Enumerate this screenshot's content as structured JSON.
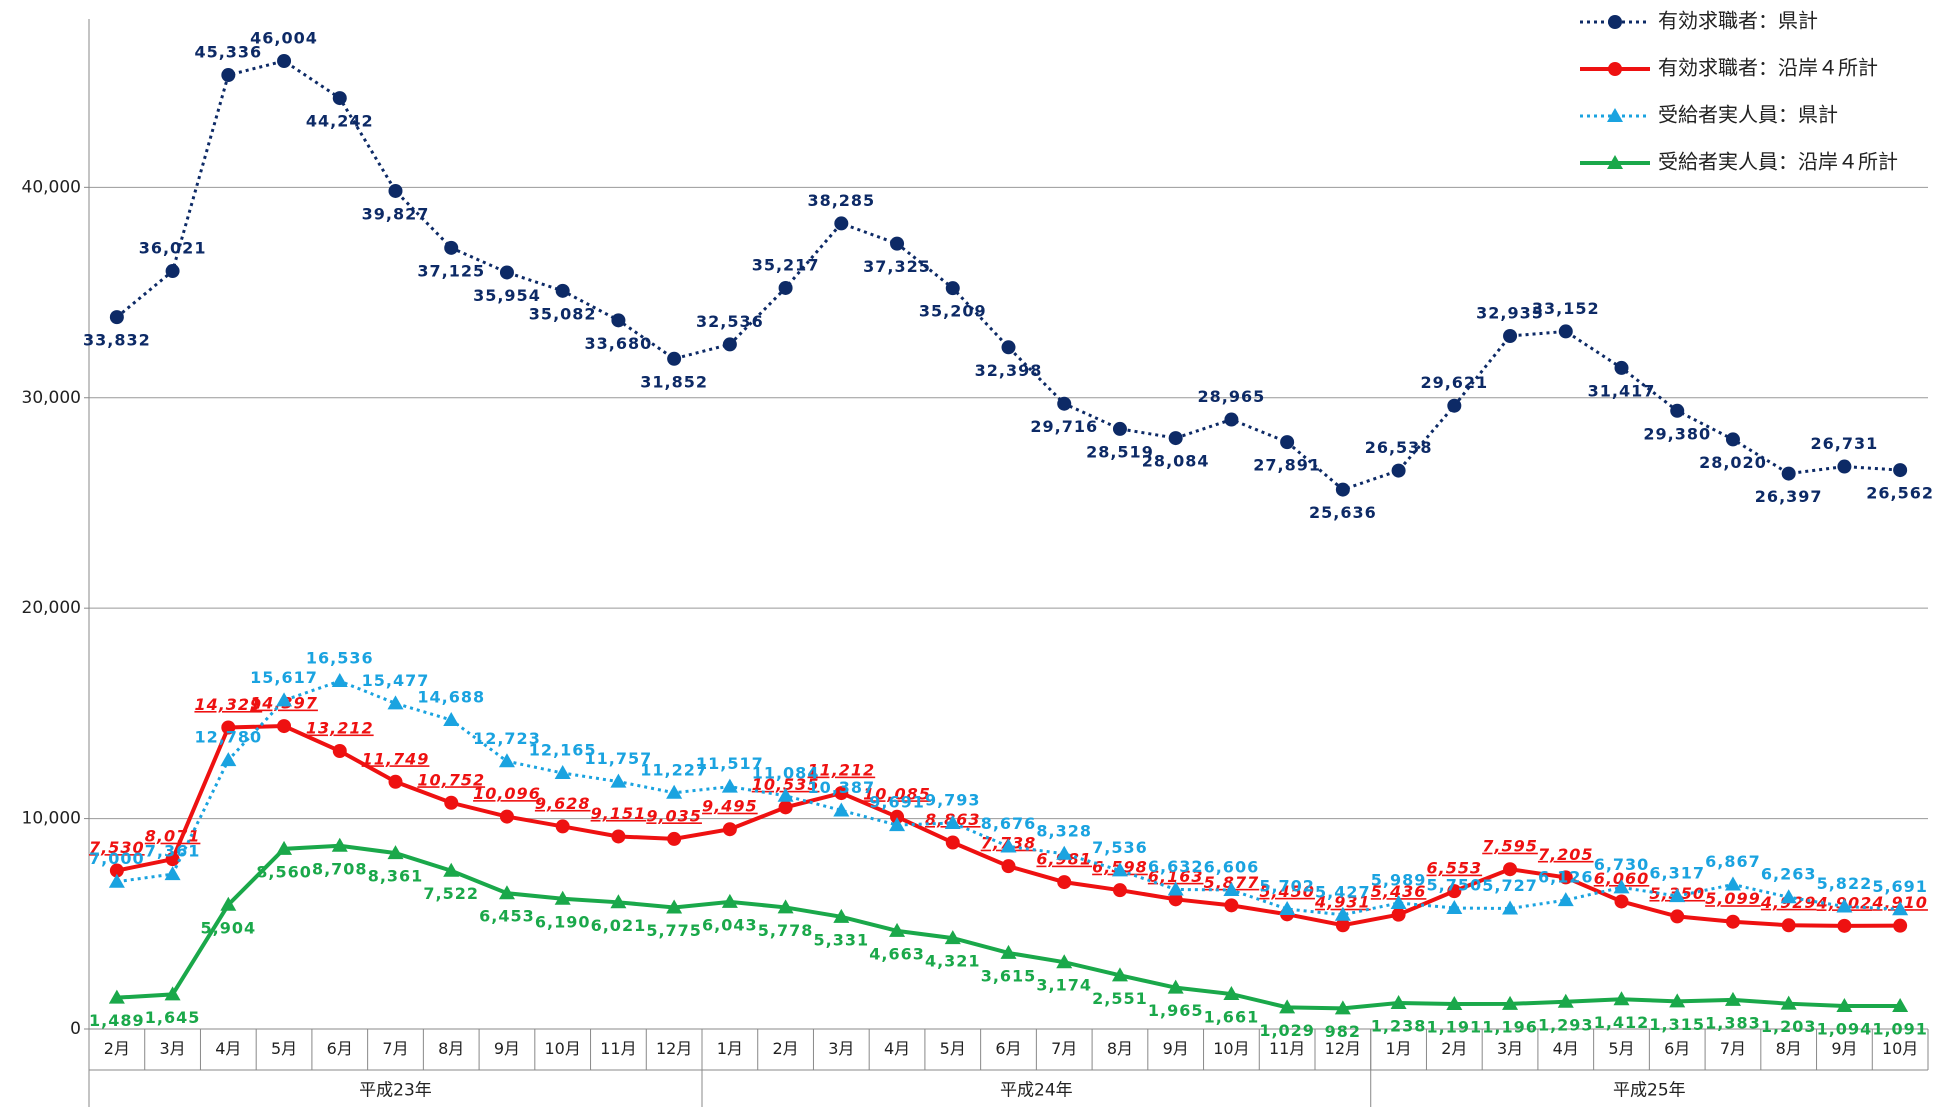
{
  "chart_data": {
    "type": "line",
    "categories": [
      "2月",
      "3月",
      "4月",
      "5月",
      "6月",
      "7月",
      "8月",
      "9月",
      "10月",
      "11月",
      "12月",
      "1月",
      "2月",
      "3月",
      "4月",
      "5月",
      "6月",
      "7月",
      "8月",
      "9月",
      "10月",
      "11月",
      "12月",
      "1月",
      "2月",
      "3月",
      "4月",
      "5月",
      "6月",
      "7月",
      "8月",
      "9月",
      "10月"
    ],
    "groups": [
      {
        "label": "平成23年",
        "count": 11
      },
      {
        "label": "平成24年",
        "count": 12
      },
      {
        "label": "平成25年",
        "count": 10
      }
    ],
    "ylim": [
      0,
      48000
    ],
    "yticks": [
      0,
      {
        "value": 10000,
        "label": "10,000"
      },
      {
        "value": 20000,
        "label": "20,000"
      },
      {
        "value": 30000,
        "label": "30,000"
      },
      {
        "value": 40000,
        "label": "40,000"
      }
    ],
    "grid": true,
    "legend": "top-right",
    "series": [
      {
        "name": "有効求職者：県計",
        "color": "#0d2a66",
        "line_style": "dotted",
        "marker": "circle",
        "label_style": "normal",
        "values": [
          33832,
          36021,
          45336,
          46004,
          44242,
          39827,
          37125,
          35954,
          35082,
          33680,
          31852,
          32536,
          35217,
          38285,
          37325,
          35209,
          32398,
          29716,
          28519,
          28084,
          28965,
          27891,
          25636,
          26538,
          29621,
          32935,
          33152,
          31417,
          29380,
          28020,
          26397,
          26731,
          26562
        ],
        "value_labels": [
          "33,832",
          "36,021",
          "45,336",
          "46,004",
          "44,242",
          "39,827",
          "37,125",
          "35,954",
          "35,082",
          "33,680",
          "31,852",
          "32,536",
          "35,217",
          "38,285",
          "37,325",
          "35,209",
          "32,398",
          "29,716",
          "28,519",
          "28,084",
          "28,965",
          "27,891",
          "25,636",
          "26,538",
          "29,621",
          "32,935",
          "33,152",
          "31,417",
          "29,380",
          "28,020",
          "26,397",
          "26,731",
          "26,562"
        ]
      },
      {
        "name": "有効求職者：沿岸４所計",
        "color": "#ee1111",
        "line_style": "solid",
        "marker": "circle",
        "label_style": "italic-underline",
        "values": [
          7530,
          8071,
          14329,
          14397,
          13212,
          11749,
          10752,
          10096,
          9628,
          9151,
          9035,
          9495,
          10535,
          11212,
          10085,
          8863,
          7738,
          6981,
          6598,
          6163,
          5877,
          5450,
          4931,
          5436,
          6553,
          7595,
          7205,
          6060,
          5350,
          5099,
          4929,
          4902,
          4910
        ],
        "value_labels": [
          "7,530",
          "8,071",
          "14,329",
          "14,397",
          "13,212",
          "11,749",
          "10,752",
          "10,096",
          "9,628",
          "9,151",
          "9,035",
          "9,495",
          "10,535",
          "11,212",
          "10,085",
          "8,863",
          "7,738",
          "6,981",
          "6,598",
          "6,163",
          "5,877",
          "5,450",
          "4,931",
          "5,436",
          "6,553",
          "7,595",
          "7,205",
          "6,060",
          "5,350",
          "5,099",
          "4,929",
          "4,902",
          "4,910"
        ]
      },
      {
        "name": "受給者実人員：県計",
        "color": "#1aa3e0",
        "line_style": "dotted",
        "marker": "triangle",
        "label_style": "normal",
        "values": [
          7000,
          7361,
          12780,
          15617,
          16536,
          15477,
          14688,
          12723,
          12165,
          11757,
          11227,
          11517,
          11084,
          10387,
          9691,
          9793,
          8676,
          8328,
          7536,
          6632,
          6606,
          5702,
          5427,
          5989,
          5750,
          5727,
          6126,
          6730,
          6317,
          6867,
          6263,
          5822,
          5691
        ],
        "value_labels": [
          "7,000",
          "7,361",
          "12,780",
          "15,617",
          "16,536",
          "15,477",
          "14,688",
          "12,723",
          "12,165",
          "11,757",
          "11,227",
          "11,517",
          "11,084",
          "10,387",
          "9,691",
          "9,793",
          "8,676",
          "8,328",
          "7,536",
          "6,632",
          "6,606",
          "5,702",
          "5,427",
          "5,989",
          "5,750",
          "5,727",
          "6,126",
          "6,730",
          "6,317",
          "6,867",
          "6,263",
          "5,822",
          "5,691"
        ]
      },
      {
        "name": "受給者実人員：沿岸４所計",
        "color": "#1aa84a",
        "line_style": "solid",
        "marker": "triangle",
        "label_style": "normal",
        "values": [
          1489,
          1645,
          5904,
          8560,
          8708,
          8361,
          7522,
          6453,
          6190,
          6021,
          5775,
          6043,
          5778,
          5331,
          4663,
          4321,
          3615,
          3174,
          2551,
          1965,
          1661,
          1029,
          982,
          1238,
          1191,
          1196,
          1293,
          1412,
          1315,
          1383,
          1203,
          1094,
          1091
        ],
        "value_labels": [
          "1,489",
          "1,645",
          "5,904",
          "8,560",
          "8,708",
          "8,361",
          "7,522",
          "6,453",
          "6,190",
          "6,021",
          "5,775",
          "6,043",
          "5,778",
          "5,331",
          "4,663",
          "4,321",
          "3,615",
          "3,174",
          "2,551",
          "1,965",
          "1,661",
          "1,029",
          "982",
          "1,238",
          "1,191",
          "1,196",
          "1,293",
          "1,412",
          "1,315",
          "1,383",
          "1,203",
          "1,094",
          "1,091"
        ]
      }
    ]
  }
}
